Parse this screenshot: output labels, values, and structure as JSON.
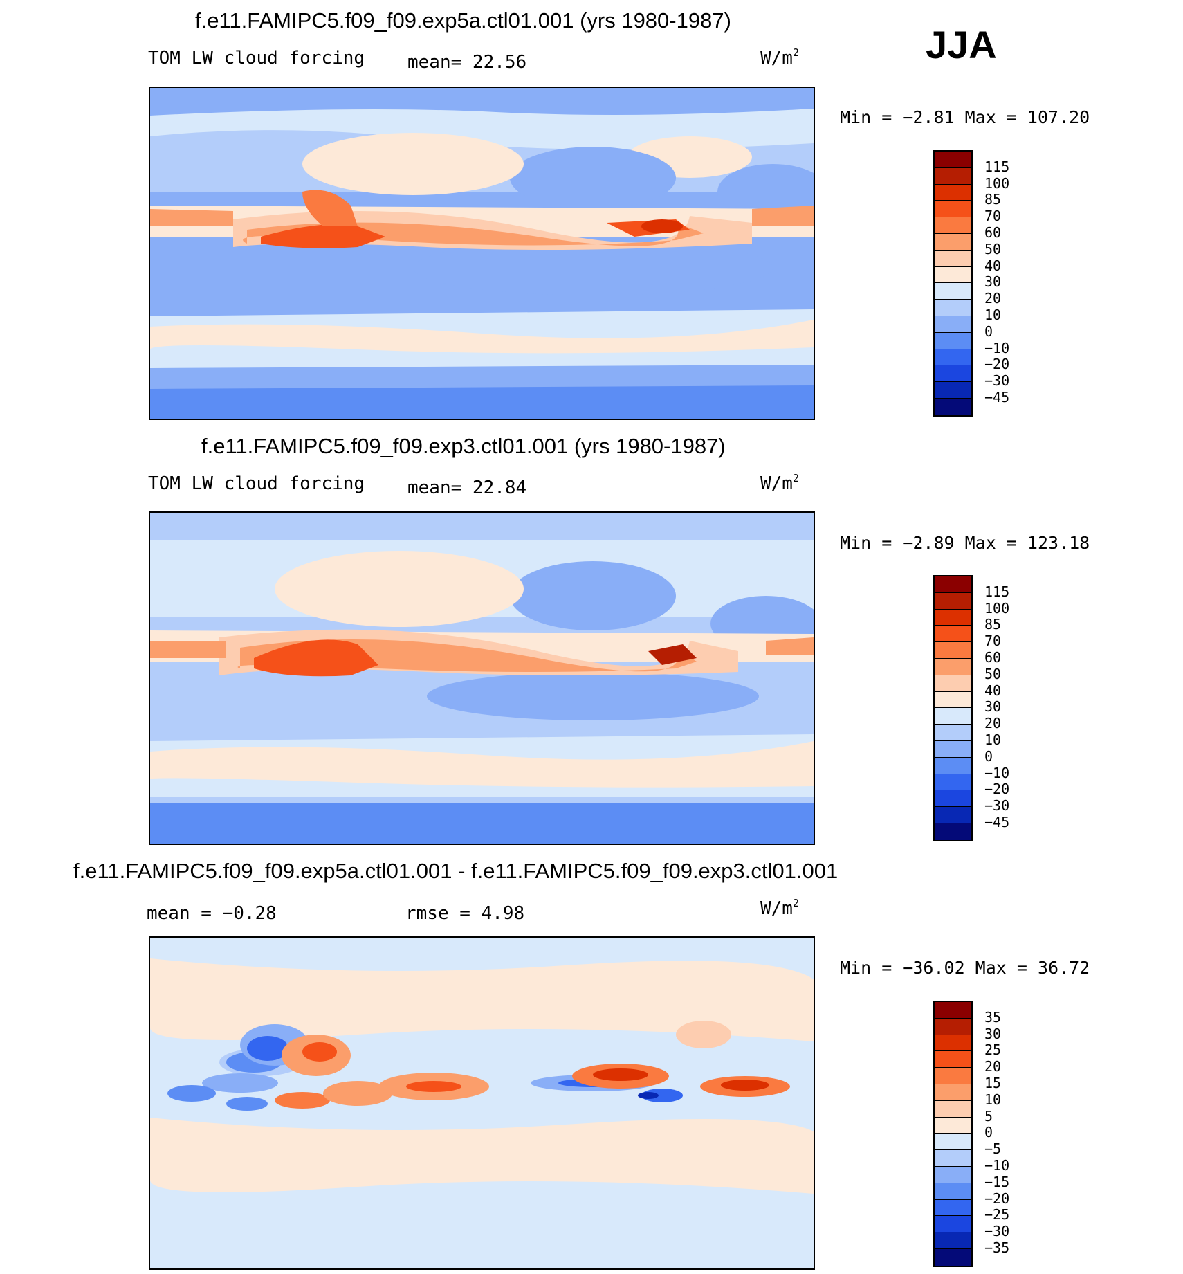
{
  "season": "JJA",
  "panels": [
    {
      "title": "f.e11.FAMIPC5.f09_f09.exp5a.ctl01.001 (yrs 1980-1987)",
      "left_label": "TOM LW cloud forcing",
      "mid_label": "mean=  22.56",
      "units_base": "W/m",
      "units_exp": "2",
      "stats": "Min =   −2.81 Max =  107.20",
      "colorbar": {
        "levels": [
          "115",
          "100",
          "85",
          "70",
          "60",
          "50",
          "40",
          "30",
          "20",
          "10",
          "0",
          "−10",
          "−20",
          "−30",
          "−45"
        ],
        "colors": [
          "#8b0000",
          "#b51e02",
          "#dc3000",
          "#f55119",
          "#fa7a40",
          "#fb9e6b",
          "#fdcdb0",
          "#fde9d8",
          "#d8e9fb",
          "#b3cdfa",
          "#89aef7",
          "#5c8df4",
          "#3366f0",
          "#1b46e0",
          "#0828b4",
          "#040a78"
        ]
      }
    },
    {
      "title": "f.e11.FAMIPC5.f09_f09.exp3.ctl01.001 (yrs 1980-1987)",
      "left_label": "TOM LW cloud forcing",
      "mid_label": "mean=  22.84",
      "units_base": "W/m",
      "units_exp": "2",
      "stats": "Min =   −2.89 Max =  123.18",
      "colorbar": {
        "levels": [
          "115",
          "100",
          "85",
          "70",
          "60",
          "50",
          "40",
          "30",
          "20",
          "10",
          "0",
          "−10",
          "−20",
          "−30",
          "−45"
        ],
        "colors": [
          "#8b0000",
          "#b51e02",
          "#dc3000",
          "#f55119",
          "#fa7a40",
          "#fb9e6b",
          "#fdcdb0",
          "#fde9d8",
          "#d8e9fb",
          "#b3cdfa",
          "#89aef7",
          "#5c8df4",
          "#3366f0",
          "#1b46e0",
          "#0828b4",
          "#040a78"
        ]
      }
    },
    {
      "title": "f.e11.FAMIPC5.f09_f09.exp5a.ctl01.001 - f.e11.FAMIPC5.f09_f09.exp3.ctl01.001",
      "left_label": "mean =  −0.28",
      "mid_label": "rmse =   4.98",
      "units_base": "W/m",
      "units_exp": "2",
      "stats": "Min = −36.02 Max =  36.72",
      "colorbar": {
        "levels": [
          "35",
          "30",
          "25",
          "20",
          "15",
          "10",
          "5",
          "0",
          "−5",
          "−10",
          "−15",
          "−20",
          "−25",
          "−30",
          "−35"
        ],
        "colors": [
          "#8b0000",
          "#b51e02",
          "#dc3000",
          "#f55119",
          "#fa7a40",
          "#fb9e6b",
          "#fdcdb0",
          "#fde9d8",
          "#d8e9fb",
          "#b3cdfa",
          "#89aef7",
          "#5c8df4",
          "#3366f0",
          "#1b46e0",
          "#0828b4",
          "#040a78"
        ]
      }
    }
  ],
  "chart_data": [
    {
      "type": "heatmap",
      "title": "f.e11.FAMIPC5.f09_f09.exp5a.ctl01.001 (yrs 1980-1987)",
      "variable": "TOM LW cloud forcing",
      "units": "W/m2",
      "mean": 22.56,
      "min": -2.81,
      "max": 107.2,
      "contour_levels": [
        -45,
        -30,
        -20,
        -10,
        0,
        10,
        20,
        30,
        40,
        50,
        60,
        70,
        85,
        100,
        115
      ]
    },
    {
      "type": "heatmap",
      "title": "f.e11.FAMIPC5.f09_f09.exp3.ctl01.001 (yrs 1980-1987)",
      "variable": "TOM LW cloud forcing",
      "units": "W/m2",
      "mean": 22.84,
      "min": -2.89,
      "max": 123.18,
      "contour_levels": [
        -45,
        -30,
        -20,
        -10,
        0,
        10,
        20,
        30,
        40,
        50,
        60,
        70,
        85,
        100,
        115
      ]
    },
    {
      "type": "heatmap",
      "title": "f.e11.FAMIPC5.f09_f09.exp5a.ctl01.001 - f.e11.FAMIPC5.f09_f09.exp3.ctl01.001",
      "units": "W/m2",
      "mean": -0.28,
      "rmse": 4.98,
      "min": -36.02,
      "max": 36.72,
      "contour_levels": [
        -35,
        -30,
        -25,
        -20,
        -15,
        -10,
        -5,
        0,
        5,
        10,
        15,
        20,
        25,
        30,
        35
      ]
    }
  ]
}
